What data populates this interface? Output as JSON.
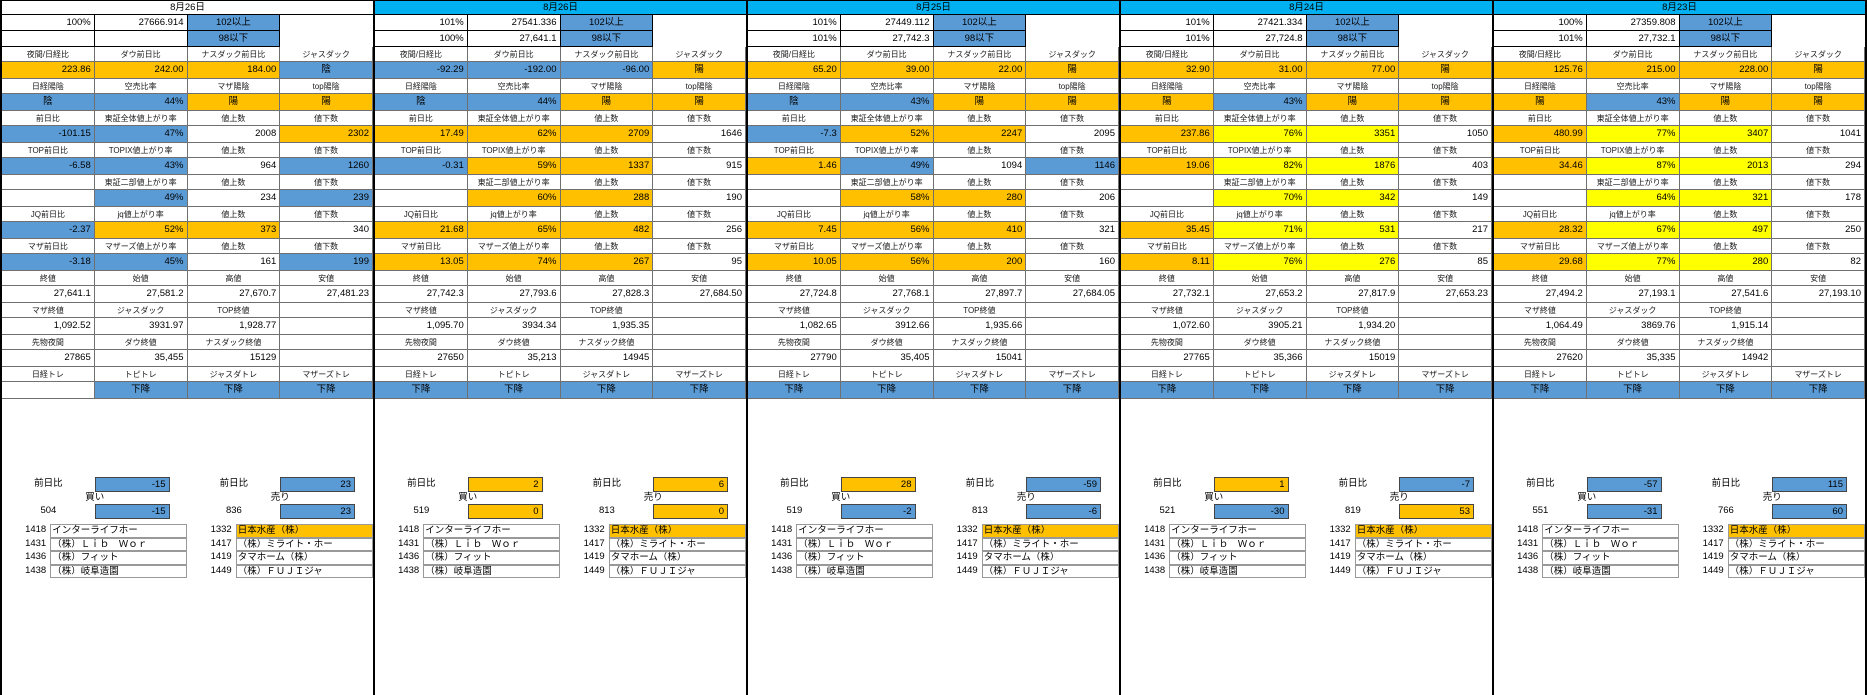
{
  "palette": {
    "header_cyan": "#00B0F0",
    "orange": "#FFC000",
    "blue": "#5B9BD5",
    "yellow": "#FFFF00"
  },
  "shared": {
    "buy_label": "買い",
    "sell_label": "売り",
    "label_rows": [
      [
        "夜間/日経比",
        "ダウ前日比",
        "ナスダック前日比",
        "ジャスダック"
      ],
      [
        "日経陽陰",
        "空売比率",
        "マザ陽陰",
        "top陽陰"
      ],
      [
        "前日比",
        "東証全体値上がり率",
        "値上数",
        "値下数"
      ],
      [
        "TOP前日比",
        "TOPIX値上がり率",
        "値上数",
        "値下数"
      ],
      [
        "",
        "東証二部値上がり率",
        "値上数",
        "値下数"
      ],
      [
        "JQ前日比",
        "jq値上がり率",
        "値上数",
        "値下数"
      ],
      [
        "マザ前日比",
        "マザーズ値上がり率",
        "値上数",
        "値下数"
      ],
      [
        "終値",
        "始値",
        "高値",
        "安値"
      ],
      [
        "マザ終値",
        "ジャスダック",
        "TOP終値",
        ""
      ],
      [
        "先物夜間",
        "ダウ終値",
        "ナスダック終値",
        ""
      ],
      [
        "日経トレ",
        "トピトレ",
        "ジャスダトレ",
        "マザーズトレ"
      ]
    ],
    "stocks_buy": [
      [
        "1418",
        "インターライフホー"
      ],
      [
        "1431",
        "（株）Ｌｉｂ　Ｗｏｒ"
      ],
      [
        "1436",
        "（株）フィット"
      ],
      [
        "1438",
        "（株）岐阜造園"
      ]
    ],
    "stocks_sell": [
      [
        "1332",
        "日本水産（株）",
        "o"
      ],
      [
        "1417",
        "（株）ミライト・ホー"
      ],
      [
        "1419",
        "タマホーム（株）"
      ],
      [
        "1449",
        "（株）ＦＵＪＩジャ"
      ]
    ]
  },
  "blocks": [
    {
      "date": "8月26日",
      "header": "white",
      "pct": [
        [
          "100%",
          "27666.914",
          "102以上"
        ],
        [
          "",
          "",
          "98以下"
        ]
      ],
      "rows": [
        [
          [
            "223.86",
            "o"
          ],
          [
            "242.00",
            "o"
          ],
          [
            "184.00",
            "o"
          ],
          [
            "陰",
            "b"
          ]
        ],
        [
          [
            "陰",
            "b"
          ],
          [
            "44%",
            "b"
          ],
          [
            "陽",
            "o"
          ],
          [
            "陽",
            "o"
          ]
        ],
        [
          [
            "-101.15",
            "b"
          ],
          [
            "47%",
            "b"
          ],
          [
            "2008",
            ""
          ],
          [
            "2302",
            "o"
          ]
        ],
        [
          [
            "-6.58",
            "b"
          ],
          [
            "43%",
            "b"
          ],
          [
            "964",
            ""
          ],
          [
            "1260",
            "b"
          ]
        ],
        [
          [
            "",
            ""
          ],
          [
            "49%",
            "b"
          ],
          [
            "234",
            ""
          ],
          [
            "239",
            "b"
          ]
        ],
        [
          [
            "-2.37",
            "b"
          ],
          [
            "52%",
            "o"
          ],
          [
            "373",
            "o"
          ],
          [
            "340",
            ""
          ]
        ],
        [
          [
            "-3.18",
            "b"
          ],
          [
            "45%",
            "b"
          ],
          [
            "161",
            ""
          ],
          [
            "199",
            "b"
          ]
        ],
        [
          [
            "27,641.1",
            ""
          ],
          [
            "27,581.2",
            ""
          ],
          [
            "27,670.7",
            ""
          ],
          [
            "27,481.23",
            ""
          ]
        ],
        [
          [
            "1,092.52",
            ""
          ],
          [
            "3931.97",
            ""
          ],
          [
            "1,928.77",
            ""
          ],
          [
            "",
            ""
          ]
        ],
        [
          [
            "27865",
            ""
          ],
          [
            "35,455",
            ""
          ],
          [
            "15129",
            ""
          ],
          [
            "",
            ""
          ]
        ],
        [
          [
            "",
            ""
          ],
          [
            "下降",
            "b"
          ],
          [
            "下降",
            "b"
          ],
          [
            "下降",
            "b"
          ]
        ]
      ],
      "bottom": {
        "pairs": [
          [
            "前日比",
            "-15",
            "b"
          ],
          [
            "前日比",
            "23",
            "b"
          ]
        ],
        "nums": [
          [
            "504",
            "-15",
            "b"
          ],
          [
            "836",
            "23",
            "b"
          ]
        ]
      }
    },
    {
      "date": "8月26日",
      "header": "cyan",
      "pct": [
        [
          "101%",
          "27541.336",
          "102以上"
        ],
        [
          "100%",
          "27,641.1",
          "98以下"
        ]
      ],
      "rows": [
        [
          [
            "-92.29",
            "b"
          ],
          [
            "-192.00",
            "b"
          ],
          [
            "-96.00",
            "b"
          ],
          [
            "陽",
            "o"
          ]
        ],
        [
          [
            "陰",
            "b"
          ],
          [
            "44%",
            "b"
          ],
          [
            "陽",
            "o"
          ],
          [
            "陽",
            "o"
          ]
        ],
        [
          [
            "17.49",
            "o"
          ],
          [
            "62%",
            "o"
          ],
          [
            "2709",
            "o"
          ],
          [
            "1646",
            ""
          ]
        ],
        [
          [
            "-0.31",
            "b"
          ],
          [
            "59%",
            "o"
          ],
          [
            "1337",
            "o"
          ],
          [
            "915",
            ""
          ]
        ],
        [
          [
            "",
            ""
          ],
          [
            "60%",
            "o"
          ],
          [
            "288",
            "o"
          ],
          [
            "190",
            ""
          ]
        ],
        [
          [
            "21.68",
            "o"
          ],
          [
            "65%",
            "o"
          ],
          [
            "482",
            "o"
          ],
          [
            "256",
            ""
          ]
        ],
        [
          [
            "13.05",
            "o"
          ],
          [
            "74%",
            "o"
          ],
          [
            "267",
            "o"
          ],
          [
            "95",
            ""
          ]
        ],
        [
          [
            "27,742.3",
            ""
          ],
          [
            "27,793.6",
            ""
          ],
          [
            "27,828.3",
            ""
          ],
          [
            "27,684.50",
            ""
          ]
        ],
        [
          [
            "1,095.70",
            ""
          ],
          [
            "3934.34",
            ""
          ],
          [
            "1,935.35",
            ""
          ],
          [
            "",
            ""
          ]
        ],
        [
          [
            "27650",
            ""
          ],
          [
            "35,213",
            ""
          ],
          [
            "14945",
            ""
          ],
          [
            "",
            ""
          ]
        ],
        [
          [
            "下降",
            "b"
          ],
          [
            "下降",
            "b"
          ],
          [
            "下降",
            "b"
          ],
          [
            "下降",
            "b"
          ]
        ]
      ],
      "bottom": {
        "pairs": [
          [
            "前日比",
            "2",
            "o"
          ],
          [
            "前日比",
            "6",
            "o"
          ]
        ],
        "nums": [
          [
            "519",
            "0",
            "o"
          ],
          [
            "813",
            "0",
            "o"
          ]
        ]
      }
    },
    {
      "date": "8月25日",
      "header": "cyan",
      "pct": [
        [
          "101%",
          "27449.112",
          "102以上"
        ],
        [
          "101%",
          "27,742.3",
          "98以下"
        ]
      ],
      "rows": [
        [
          [
            "65.20",
            "o"
          ],
          [
            "39.00",
            "o"
          ],
          [
            "22.00",
            "o"
          ],
          [
            "陽",
            "o"
          ]
        ],
        [
          [
            "陰",
            "b"
          ],
          [
            "43%",
            "b"
          ],
          [
            "陽",
            "o"
          ],
          [
            "陽",
            "o"
          ]
        ],
        [
          [
            "-7.3",
            "b"
          ],
          [
            "52%",
            "o"
          ],
          [
            "2247",
            "o"
          ],
          [
            "2095",
            ""
          ]
        ],
        [
          [
            "1.46",
            "o"
          ],
          [
            "49%",
            "b"
          ],
          [
            "1094",
            ""
          ],
          [
            "1146",
            "b"
          ]
        ],
        [
          [
            "",
            ""
          ],
          [
            "58%",
            "o"
          ],
          [
            "280",
            "o"
          ],
          [
            "206",
            ""
          ]
        ],
        [
          [
            "7.45",
            "o"
          ],
          [
            "56%",
            "o"
          ],
          [
            "410",
            "o"
          ],
          [
            "321",
            ""
          ]
        ],
        [
          [
            "10.05",
            "o"
          ],
          [
            "56%",
            "o"
          ],
          [
            "200",
            "o"
          ],
          [
            "160",
            ""
          ]
        ],
        [
          [
            "27,724.8",
            ""
          ],
          [
            "27,768.1",
            ""
          ],
          [
            "27,897.7",
            ""
          ],
          [
            "27,684.05",
            ""
          ]
        ],
        [
          [
            "1,082.65",
            ""
          ],
          [
            "3912.66",
            ""
          ],
          [
            "1,935.66",
            ""
          ],
          [
            "",
            ""
          ]
        ],
        [
          [
            "27790",
            ""
          ],
          [
            "35,405",
            ""
          ],
          [
            "15041",
            ""
          ],
          [
            "",
            ""
          ]
        ],
        [
          [
            "下降",
            "b"
          ],
          [
            "下降",
            "b"
          ],
          [
            "下降",
            "b"
          ],
          [
            "下降",
            "b"
          ]
        ]
      ],
      "bottom": {
        "pairs": [
          [
            "前日比",
            "28",
            "o"
          ],
          [
            "前日比",
            "-59",
            "b"
          ]
        ],
        "nums": [
          [
            "519",
            "-2",
            "b"
          ],
          [
            "813",
            "-6",
            "b"
          ]
        ]
      }
    },
    {
      "date": "8月24日",
      "header": "cyan",
      "pct": [
        [
          "101%",
          "27421.334",
          "102以上"
        ],
        [
          "101%",
          "27,724.8",
          "98以下"
        ]
      ],
      "rows": [
        [
          [
            "32.90",
            "o"
          ],
          [
            "31.00",
            "o"
          ],
          [
            "77.00",
            "o"
          ],
          [
            "陽",
            "o"
          ]
        ],
        [
          [
            "陽",
            "o"
          ],
          [
            "43%",
            "b"
          ],
          [
            "陽",
            "o"
          ],
          [
            "陽",
            "o"
          ]
        ],
        [
          [
            "237.86",
            "o"
          ],
          [
            "76%",
            "y"
          ],
          [
            "3351",
            "y"
          ],
          [
            "1050",
            ""
          ]
        ],
        [
          [
            "19.06",
            "o"
          ],
          [
            "82%",
            "y"
          ],
          [
            "1876",
            "y"
          ],
          [
            "403",
            ""
          ]
        ],
        [
          [
            "",
            ""
          ],
          [
            "70%",
            "y"
          ],
          [
            "342",
            "y"
          ],
          [
            "149",
            ""
          ]
        ],
        [
          [
            "35.45",
            "o"
          ],
          [
            "71%",
            "y"
          ],
          [
            "531",
            "y"
          ],
          [
            "217",
            ""
          ]
        ],
        [
          [
            "8.11",
            "o"
          ],
          [
            "76%",
            "y"
          ],
          [
            "276",
            "y"
          ],
          [
            "85",
            ""
          ]
        ],
        [
          [
            "27,732.1",
            ""
          ],
          [
            "27,653.2",
            ""
          ],
          [
            "27,817.9",
            ""
          ],
          [
            "27,653.23",
            ""
          ]
        ],
        [
          [
            "1,072.60",
            ""
          ],
          [
            "3905.21",
            ""
          ],
          [
            "1,934.20",
            ""
          ],
          [
            "",
            ""
          ]
        ],
        [
          [
            "27765",
            ""
          ],
          [
            "35,366",
            ""
          ],
          [
            "15019",
            ""
          ],
          [
            "",
            ""
          ]
        ],
        [
          [
            "下降",
            "b"
          ],
          [
            "下降",
            "b"
          ],
          [
            "下降",
            "b"
          ],
          [
            "下降",
            "b"
          ]
        ]
      ],
      "bottom": {
        "pairs": [
          [
            "前日比",
            "1",
            "o"
          ],
          [
            "前日比",
            "-7",
            "b"
          ]
        ],
        "nums": [
          [
            "521",
            "-30",
            "b"
          ],
          [
            "819",
            "53",
            "o"
          ]
        ]
      }
    },
    {
      "date": "8月23日",
      "header": "cyan",
      "pct": [
        [
          "100%",
          "27359.808",
          "102以上"
        ],
        [
          "101%",
          "27,732.1",
          "98以下"
        ]
      ],
      "rows": [
        [
          [
            "125.76",
            "o"
          ],
          [
            "215.00",
            "o"
          ],
          [
            "228.00",
            "o"
          ],
          [
            "陽",
            "o"
          ]
        ],
        [
          [
            "陽",
            "o"
          ],
          [
            "43%",
            "b"
          ],
          [
            "陽",
            "o"
          ],
          [
            "陽",
            "o"
          ]
        ],
        [
          [
            "480.99",
            "o"
          ],
          [
            "77%",
            "y"
          ],
          [
            "3407",
            "y"
          ],
          [
            "1041",
            ""
          ]
        ],
        [
          [
            "34.46",
            "o"
          ],
          [
            "87%",
            "y"
          ],
          [
            "2013",
            "y"
          ],
          [
            "294",
            ""
          ]
        ],
        [
          [
            "",
            ""
          ],
          [
            "64%",
            "y"
          ],
          [
            "321",
            "y"
          ],
          [
            "178",
            ""
          ]
        ],
        [
          [
            "28.32",
            "o"
          ],
          [
            "67%",
            "y"
          ],
          [
            "497",
            "y"
          ],
          [
            "250",
            ""
          ]
        ],
        [
          [
            "29.68",
            "o"
          ],
          [
            "77%",
            "y"
          ],
          [
            "280",
            "y"
          ],
          [
            "82",
            ""
          ]
        ],
        [
          [
            "27,494.2",
            ""
          ],
          [
            "27,193.1",
            ""
          ],
          [
            "27,541.6",
            ""
          ],
          [
            "27,193.10",
            ""
          ]
        ],
        [
          [
            "1,064.49",
            ""
          ],
          [
            "3869.76",
            ""
          ],
          [
            "1,915.14",
            ""
          ],
          [
            "",
            ""
          ]
        ],
        [
          [
            "27620",
            ""
          ],
          [
            "35,335",
            ""
          ],
          [
            "14942",
            ""
          ],
          [
            "",
            ""
          ]
        ],
        [
          [
            "下降",
            "b"
          ],
          [
            "下降",
            "b"
          ],
          [
            "下降",
            "b"
          ],
          [
            "下降",
            "b"
          ]
        ]
      ],
      "bottom": {
        "pairs": [
          [
            "前日比",
            "-57",
            "b"
          ],
          [
            "前日比",
            "115",
            "b"
          ]
        ],
        "nums": [
          [
            "551",
            "-31",
            "b"
          ],
          [
            "766",
            "60",
            "b"
          ]
        ]
      }
    }
  ]
}
